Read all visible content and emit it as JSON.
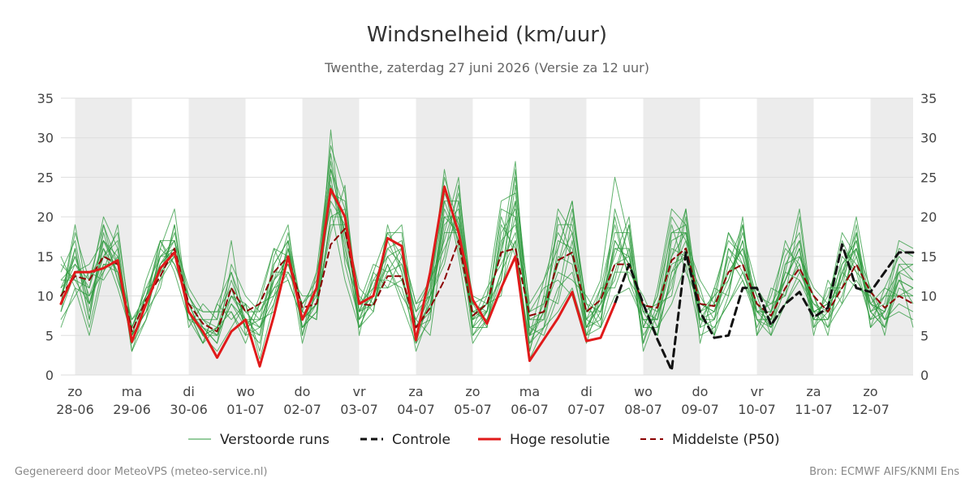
{
  "chart_data": {
    "type": "line",
    "title": "Windsnelheid (km/uur)",
    "subtitle": "Twenthe, zaterdag 27 juni 2026 (Versie za 12 uur)",
    "ylim": [
      0,
      35
    ],
    "y_ticks": [
      0,
      5,
      10,
      15,
      20,
      25,
      30,
      35
    ],
    "xlim": [
      -0.25,
      14.75
    ],
    "grid": true,
    "legend_position": "bottom",
    "x_ticks": [
      {
        "day": "zo",
        "date": "28-06"
      },
      {
        "day": "ma",
        "date": "29-06"
      },
      {
        "day": "di",
        "date": "30-06"
      },
      {
        "day": "wo",
        "date": "01-07"
      },
      {
        "day": "do",
        "date": "02-07"
      },
      {
        "day": "vr",
        "date": "03-07"
      },
      {
        "day": "za",
        "date": "04-07"
      },
      {
        "day": "zo",
        "date": "05-07"
      },
      {
        "day": "ma",
        "date": "06-07"
      },
      {
        "day": "di",
        "date": "07-07"
      },
      {
        "day": "wo",
        "date": "08-07"
      },
      {
        "day": "do",
        "date": "09-07"
      },
      {
        "day": "vr",
        "date": "10-07"
      },
      {
        "day": "za",
        "date": "11-07"
      },
      {
        "day": "zo",
        "date": "12-07"
      }
    ],
    "night_bands": [
      [
        0,
        1
      ],
      [
        2,
        3
      ],
      [
        4,
        5
      ],
      [
        6,
        7
      ],
      [
        8,
        9
      ],
      [
        10,
        11
      ],
      [
        12,
        13
      ],
      [
        14,
        14.75
      ]
    ],
    "colors": {
      "ensemble": "#2e9a3e",
      "control": "#111111",
      "hires": "#e01a1a",
      "median": "#8b0000",
      "band": "#ececec",
      "grid": "#dddddd"
    },
    "series": [
      {
        "name": "Hoge resolutie",
        "style": "solid",
        "x": [
          -0.25,
          0,
          0.25,
          0.5,
          0.75,
          1,
          1.25,
          1.5,
          1.75,
          2,
          2.25,
          2.5,
          2.75,
          3,
          3.25,
          3.5,
          3.75,
          4,
          4.25,
          4.5,
          4.75,
          5,
          5.25,
          5.5,
          5.75,
          6,
          6.25,
          6.5,
          6.75,
          7,
          7.25,
          7.5,
          7.75,
          8,
          8.25,
          8.5,
          8.75,
          9,
          9.25,
          9.5
        ],
        "values": [
          9,
          13,
          13,
          13.5,
          14.5,
          4.2,
          9,
          13.5,
          15.5,
          8,
          5.5,
          2.2,
          5.5,
          7,
          1.1,
          7.5,
          15,
          7,
          11,
          23.5,
          20,
          9,
          10,
          17.3,
          16.3,
          4.4,
          13,
          23.8,
          18,
          9.5,
          6.5,
          11,
          15,
          1.8,
          4.5,
          7.2,
          10.5,
          4.3,
          4.7,
          9
        ]
      },
      {
        "name": "Controle",
        "style": "dash",
        "x": [
          9.5,
          9.75,
          10,
          10.25,
          10.5,
          10.75,
          11,
          11.25,
          11.5,
          11.75,
          12,
          12.25,
          12.5,
          12.75,
          13,
          13.25,
          13.5,
          13.75,
          14,
          14.25,
          14.5,
          14.75
        ],
        "values": [
          9,
          14,
          9,
          4.5,
          0.6,
          15.5,
          8,
          4.7,
          5,
          11,
          11,
          6.3,
          9,
          10.5,
          7.3,
          8.5,
          16.5,
          11,
          10.5,
          13,
          15.5,
          15.5
        ]
      },
      {
        "name": "Middelste (P50)",
        "style": "dash",
        "x": [
          -0.25,
          0,
          0.25,
          0.5,
          0.75,
          1,
          1.25,
          1.5,
          1.75,
          2,
          2.25,
          2.5,
          2.75,
          3,
          3.25,
          3.5,
          3.75,
          4,
          4.25,
          4.5,
          4.75,
          5,
          5.25,
          5.5,
          5.75,
          6,
          6.25,
          6.5,
          6.75,
          7,
          7.25,
          7.5,
          7.75,
          8,
          8.25,
          8.5,
          8.75,
          9,
          9.25,
          9.5,
          9.75,
          10,
          10.25,
          10.5,
          10.75,
          11,
          11.25,
          11.5,
          11.75,
          12,
          12.25,
          12.5,
          12.75,
          13,
          13.25,
          13.5,
          13.75,
          14,
          14.25,
          14.5,
          14.75
        ],
        "values": [
          10,
          12.5,
          12,
          15,
          14,
          5.5,
          9.5,
          12.5,
          16,
          9,
          6.5,
          5.5,
          11,
          8,
          9,
          13,
          15,
          8.5,
          9,
          16.5,
          18.5,
          9,
          8.8,
          12.5,
          12.5,
          6,
          8.5,
          12,
          17,
          7.5,
          9,
          15.5,
          16,
          7.5,
          8,
          14.5,
          15.5,
          8,
          9.5,
          14,
          14,
          8.8,
          8.5,
          14.5,
          16,
          9,
          8.7,
          13,
          14,
          9,
          7.5,
          11,
          13.5,
          10,
          8,
          11,
          14,
          10.5,
          8.5,
          10,
          9
        ]
      }
    ],
    "ensemble": {
      "name": "Verstoorde runs",
      "x_start": -0.25,
      "x_step": 0.25,
      "runs": [
        [
          10,
          16,
          7,
          17,
          13,
          4,
          10,
          13,
          15,
          9,
          5,
          3,
          6,
          9,
          2,
          9,
          16,
          6,
          9,
          26,
          21,
          8,
          10,
          18,
          15,
          5,
          11,
          25,
          19,
          8,
          7,
          11,
          17,
          2,
          6,
          8,
          11,
          5,
          6,
          10,
          11,
          7,
          5,
          13,
          17,
          7,
          6,
          9,
          12,
          7,
          5,
          9,
          12,
          8,
          6,
          9,
          12,
          9,
          7,
          8,
          7
        ],
        [
          12,
          14,
          12,
          19,
          14,
          7,
          9,
          15,
          17,
          7,
          4,
          9,
          13,
          6,
          7,
          14,
          17,
          5,
          13,
          21,
          12,
          6,
          10,
          14,
          9,
          4,
          10,
          14,
          22,
          6,
          10,
          22,
          23,
          9,
          12,
          18,
          15,
          7,
          11,
          19,
          12,
          9,
          5,
          18,
          19,
          6,
          11,
          17,
          15,
          7,
          6,
          14,
          17,
          8,
          9,
          14,
          17,
          8,
          6,
          12,
          11
        ],
        [
          6,
          11,
          5,
          13,
          19,
          5,
          8,
          11,
          19,
          6,
          9,
          7,
          17,
          5,
          10,
          16,
          12,
          7,
          9,
          18,
          24,
          5,
          13,
          11,
          12,
          7,
          5,
          18,
          25,
          5,
          8,
          13,
          20,
          5,
          6,
          16,
          22,
          6,
          9,
          12,
          19,
          3,
          8,
          11,
          21,
          8,
          5,
          10,
          19,
          5,
          8,
          12,
          16,
          5,
          12,
          9,
          18,
          6,
          8,
          13,
          14
        ],
        [
          9,
          19,
          9,
          16,
          11,
          5,
          12,
          17,
          14,
          10,
          7,
          5,
          9,
          7,
          5,
          12,
          18,
          8,
          7,
          31,
          14,
          7,
          11,
          17,
          19,
          6,
          7,
          22,
          17,
          9,
          6,
          19,
          16,
          4,
          8,
          13,
          12,
          10,
          7,
          17,
          14,
          8,
          7,
          14,
          15,
          10,
          7,
          16,
          13,
          9,
          7,
          13,
          12,
          9,
          7,
          15,
          13,
          11,
          7,
          12,
          9
        ],
        [
          14,
          12,
          11,
          20,
          16,
          3,
          7,
          16,
          21,
          8,
          6,
          4,
          14,
          10,
          8,
          11,
          14,
          9,
          12,
          24,
          18,
          9,
          14,
          13,
          14,
          8,
          12,
          16,
          20,
          10,
          9,
          16,
          27,
          3,
          10,
          21,
          18,
          8,
          12,
          25,
          17,
          6,
          10,
          20,
          17,
          12,
          9,
          13,
          16,
          10,
          9,
          10,
          15,
          11,
          9,
          11,
          15,
          8,
          9,
          17,
          16
        ],
        [
          8,
          13,
          6,
          14,
          13,
          6,
          11,
          12,
          15,
          9,
          5,
          6,
          10,
          8,
          6,
          10,
          16,
          6,
          8,
          20,
          20,
          10,
          8,
          19,
          13,
          3,
          8,
          20,
          18,
          7,
          11,
          14,
          18,
          7,
          7,
          15,
          14,
          5,
          8,
          14,
          15,
          5,
          8,
          16,
          15,
          7,
          10,
          18,
          14,
          6,
          10,
          16,
          14,
          7,
          10,
          16,
          14,
          7,
          10,
          10,
          10
        ],
        [
          11,
          15,
          10,
          15,
          17,
          4,
          9,
          14,
          17,
          11,
          8,
          8,
          8,
          4,
          9,
          16,
          15,
          4,
          11,
          27,
          16,
          7,
          9,
          15,
          16,
          9,
          10,
          24,
          15,
          4,
          7,
          12,
          24,
          6,
          5,
          10,
          20,
          9,
          6,
          13,
          13,
          10,
          6,
          9,
          14,
          5,
          6,
          9,
          13,
          8,
          6,
          9,
          13,
          10,
          6,
          13,
          11,
          10,
          6,
          13,
          6
        ],
        [
          13,
          17,
          8,
          18,
          12,
          7,
          10,
          17,
          13,
          7,
          6,
          5,
          11,
          6,
          4,
          13,
          13,
          10,
          10,
          23,
          22,
          8,
          12,
          12,
          11,
          5,
          12,
          17,
          23,
          9,
          8,
          17,
          19,
          8,
          11,
          12,
          10,
          4,
          10,
          18,
          18,
          4,
          11,
          21,
          19,
          9,
          8,
          12,
          18,
          11,
          8,
          15,
          18,
          6,
          8,
          13,
          18,
          9,
          11,
          15,
          13
        ],
        [
          7,
          10,
          13,
          12,
          15,
          5,
          8,
          15,
          16,
          8,
          4,
          9,
          7,
          9,
          7,
          8,
          17,
          8,
          13,
          28,
          17,
          6,
          10,
          16,
          17,
          6,
          9,
          19,
          21,
          6,
          6,
          18,
          21,
          5,
          9,
          17,
          16,
          6,
          7,
          16,
          16,
          8,
          9,
          15,
          21,
          6,
          7,
          14,
          19,
          8,
          7,
          13,
          21,
          7,
          7,
          12,
          20,
          10,
          7,
          9,
          8
        ],
        [
          10,
          14,
          11,
          17,
          14,
          4,
          9,
          13,
          18,
          10,
          7,
          6,
          12,
          7,
          7,
          11,
          12,
          7,
          9,
          19,
          19,
          11,
          9,
          14,
          10,
          7,
          11,
          26,
          16,
          7,
          9,
          10,
          22,
          7,
          8,
          19,
          19,
          7,
          9,
          20,
          12,
          7,
          7,
          17,
          18,
          8,
          9,
          18,
          15,
          9,
          6,
          11,
          14,
          8,
          9,
          18,
          15,
          9,
          8,
          14,
          12
        ],
        [
          12,
          12,
          9,
          15,
          18,
          6,
          10,
          16,
          14,
          9,
          5,
          5,
          9,
          6,
          5,
          15,
          19,
          5,
          11,
          29,
          23,
          8,
          13,
          18,
          18,
          4,
          7,
          21,
          17,
          8,
          8,
          20,
          15,
          4,
          6,
          11,
          13,
          6,
          10,
          15,
          20,
          6,
          6,
          12,
          16,
          7,
          7,
          11,
          17,
          7,
          7,
          12,
          16,
          7,
          7,
          10,
          16,
          8,
          6,
          11,
          10
        ],
        [
          9,
          18,
          12,
          16,
          13,
          5,
          8,
          14,
          16,
          7,
          7,
          7,
          13,
          8,
          8,
          12,
          14,
          8,
          7,
          25,
          15,
          9,
          11,
          11,
          15,
          8,
          10,
          15,
          24,
          9,
          10,
          15,
          25,
          8,
          9,
          14,
          21,
          9,
          8,
          17,
          14,
          9,
          8,
          19,
          13,
          9,
          8,
          15,
          12,
          8,
          8,
          17,
          13,
          9,
          8,
          17,
          13,
          7,
          8,
          16,
          15
        ],
        [
          15,
          11,
          10,
          13,
          16,
          4,
          7,
          12,
          19,
          8,
          4,
          6,
          8,
          5,
          6,
          9,
          16,
          7,
          10,
          22,
          19,
          7,
          12,
          15,
          12,
          6,
          8,
          23,
          19,
          5,
          7,
          13,
          17,
          3,
          10,
          9,
          17,
          5,
          11,
          11,
          16,
          4,
          9,
          10,
          20,
          4,
          11,
          10,
          20,
          5,
          11,
          10,
          20,
          6,
          11,
          11,
          19,
          6,
          11,
          10,
          11
        ],
        [
          8,
          16,
          7,
          19,
          12,
          6,
          11,
          15,
          15,
          10,
          6,
          4,
          10,
          9,
          3,
          14,
          17,
          6,
          8,
          20,
          21,
          6,
          8,
          17,
          13,
          5,
          9,
          18,
          18,
          7,
          8,
          21,
          20,
          6,
          7,
          20,
          15,
          7,
          6,
          21,
          15,
          8,
          5,
          13,
          15,
          11,
          5,
          16,
          14,
          10,
          5,
          14,
          15,
          10,
          5,
          14,
          16,
          11,
          5,
          14,
          14
        ],
        [
          11,
          13,
          14,
          17,
          15,
          3,
          9,
          17,
          17,
          9,
          8,
          8,
          11,
          6,
          9,
          10,
          13,
          9,
          11,
          26,
          18,
          8,
          9,
          13,
          16,
          9,
          12,
          22,
          22,
          8,
          9,
          12,
          26,
          5,
          12,
          16,
          22,
          8,
          8,
          13,
          19,
          6,
          10,
          18,
          18,
          8,
          10,
          12,
          17,
          8,
          9,
          12,
          17,
          8,
          9,
          12,
          17,
          8,
          10,
          13,
          12
        ],
        [
          10,
          15,
          9,
          14,
          14,
          5,
          10,
          14,
          16,
          8,
          5,
          6,
          10,
          7,
          6,
          12,
          15,
          7,
          9,
          23,
          20,
          9,
          10,
          16,
          14,
          6,
          10,
          20,
          20,
          6,
          8,
          16,
          22,
          5,
          8,
          14,
          18,
          6,
          9,
          16,
          15,
          7,
          7,
          15,
          18,
          7,
          8,
          13,
          16,
          8,
          8,
          12,
          16,
          8,
          8,
          13,
          16,
          9,
          8,
          12,
          11
        ]
      ]
    },
    "legend": [
      {
        "name": "Verstoorde runs"
      },
      {
        "name": "Controle"
      },
      {
        "name": "Hoge resolutie"
      },
      {
        "name": "Middelste (P50)"
      }
    ]
  },
  "footer": {
    "left": "Gegenereerd door MeteoVPS (meteo-service.nl)",
    "right": "Bron: ECMWF AIFS/KNMI Ens"
  }
}
